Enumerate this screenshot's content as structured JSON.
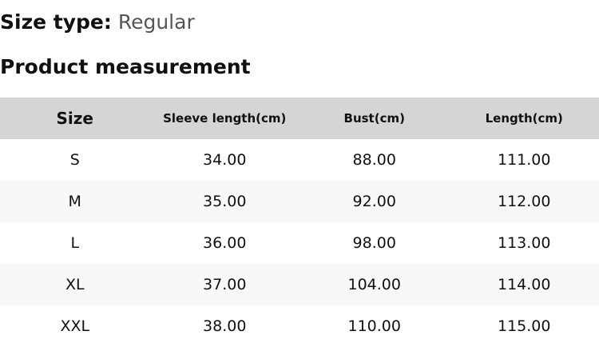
{
  "size_type": {
    "label": "Size type:",
    "value": "Regular"
  },
  "section_title": "Product measurement",
  "table": {
    "headers": [
      "Size",
      "Sleeve length(cm)",
      "Bust(cm)",
      "Length(cm)"
    ],
    "rows": [
      [
        "S",
        "34.00",
        "88.00",
        "111.00"
      ],
      [
        "M",
        "35.00",
        "92.00",
        "112.00"
      ],
      [
        "L",
        "36.00",
        "98.00",
        "113.00"
      ],
      [
        "XL",
        "37.00",
        "104.00",
        "114.00"
      ],
      [
        "XXL",
        "38.00",
        "110.00",
        "115.00"
      ]
    ]
  },
  "colors": {
    "header_bg": "#d5d5d5",
    "alt_row_bg": "#f8f8f8"
  }
}
